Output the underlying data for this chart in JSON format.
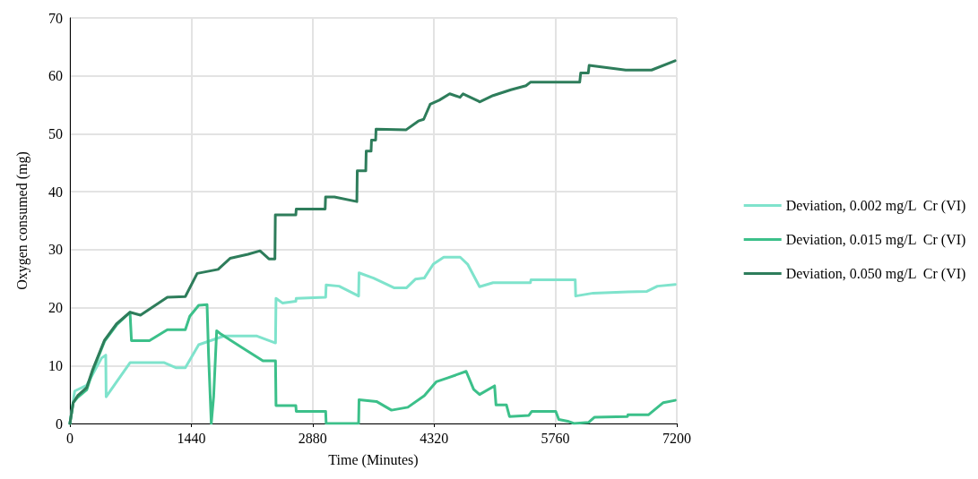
{
  "chart_data": {
    "type": "line",
    "xlabel": "Time (Minutes)",
    "ylabel": "Oxygen consumed (mg)",
    "xlim": [
      0,
      7200
    ],
    "xticks": [
      0,
      1440,
      2880,
      4320,
      5760,
      7200
    ],
    "ylim": [
      0,
      70
    ],
    "yticks": [
      0,
      10,
      20,
      30,
      40,
      50,
      60,
      70
    ],
    "grid": true,
    "legend": "right",
    "marker": "none",
    "line_style": "solid",
    "series": [
      {
        "name": "Deviation, 0.002 mg/L  Cr (VI)",
        "color": "#7fe3cc",
        "x": [
          0,
          57,
          199,
          376,
          425,
          430,
          713,
          1120,
          1262,
          1369,
          1528,
          1829,
          2219,
          2439,
          2445,
          2521,
          2680,
          2685,
          3034,
          3040,
          3194,
          3425,
          3430,
          3602,
          3850,
          3991,
          4098,
          4204,
          4311,
          4435,
          4630,
          4718,
          4860,
          5020,
          5463,
          5470,
          5995,
          6000,
          6208,
          6615,
          6846,
          6970,
          7182
        ],
        "values": [
          0,
          5.6,
          6.6,
          11.3,
          11.8,
          4.6,
          10.5,
          10.5,
          9.6,
          9.6,
          13.6,
          15.1,
          15.1,
          13.9,
          21.6,
          20.8,
          21.1,
          21.6,
          21.8,
          23.9,
          23.7,
          22.0,
          26.0,
          25.1,
          23.4,
          23.4,
          24.9,
          25.1,
          27.5,
          28.7,
          28.7,
          27.5,
          23.6,
          24.3,
          24.3,
          24.8,
          24.8,
          22.0,
          22.5,
          22.7,
          22.8,
          23.7,
          24.0
        ]
      },
      {
        "name": "Deviation, 0.015 mg/L  Cr (VI)",
        "color": "#3cc08a",
        "x": [
          0,
          39,
          92,
          199,
          270,
          411,
          553,
          713,
          730,
          943,
          1156,
          1369,
          1422,
          1528,
          1627,
          1645,
          1677,
          1705,
          1741,
          1794,
          2042,
          2290,
          2439,
          2445,
          2680,
          2685,
          3034,
          3040,
          3425,
          3430,
          3637,
          3815,
          4009,
          4204,
          4346,
          4488,
          4701,
          4790,
          4860,
          5038,
          5055,
          5179,
          5215,
          5445,
          5480,
          5764,
          5800,
          5906,
          5980,
          6155,
          6225,
          6615,
          6620,
          6863,
          7040,
          7182
        ],
        "values": [
          0,
          3.6,
          4.5,
          5.8,
          9.0,
          14.2,
          17.0,
          19.2,
          14.3,
          14.3,
          16.2,
          16.2,
          18.5,
          20.4,
          20.5,
          11.8,
          0,
          4.6,
          16.0,
          15.4,
          13.1,
          10.8,
          10.8,
          3.1,
          3.1,
          2.1,
          2.1,
          0,
          0,
          4.1,
          3.8,
          2.3,
          2.8,
          4.8,
          7.2,
          7.9,
          9.0,
          5.9,
          5.0,
          6.5,
          3.2,
          3.2,
          1.2,
          1.4,
          2.1,
          2.1,
          0.7,
          0.4,
          0,
          0.2,
          1.1,
          1.2,
          1.5,
          1.5,
          3.6,
          4.0
        ]
      },
      {
        "name": "Deviation, 0.050 mg/L  Cr (VI)",
        "color": "#2e7d5b",
        "x": [
          0,
          39,
          92,
          199,
          270,
          411,
          553,
          713,
          837,
          1156,
          1369,
          1510,
          1758,
          1900,
          2113,
          2255,
          2361,
          2432,
          2437,
          2680,
          2685,
          3028,
          3033,
          3138,
          3404,
          3409,
          3510,
          3515,
          3573,
          3578,
          3627,
          3632,
          3990,
          4134,
          4197,
          4275,
          4382,
          4506,
          4627,
          4665,
          4840,
          4860,
          5020,
          5232,
          5410,
          5463,
          6048,
          6060,
          6150,
          6160,
          6594,
          6900,
          7180
        ],
        "values": [
          0,
          3.6,
          4.8,
          6.2,
          9.3,
          14.4,
          17.2,
          19.2,
          18.7,
          21.8,
          21.9,
          25.9,
          26.6,
          28.5,
          29.2,
          29.8,
          28.4,
          28.4,
          36.0,
          36.0,
          37.0,
          37.0,
          39.1,
          39.1,
          38.3,
          43.6,
          43.6,
          47.0,
          47.0,
          48.9,
          48.9,
          50.8,
          50.7,
          52.2,
          52.5,
          55.1,
          55.8,
          56.9,
          56.3,
          56.9,
          55.7,
          55.5,
          56.6,
          57.6,
          58.3,
          58.9,
          58.9,
          60.5,
          60.5,
          61.8,
          61.0,
          61.0,
          62.6
        ]
      }
    ]
  }
}
